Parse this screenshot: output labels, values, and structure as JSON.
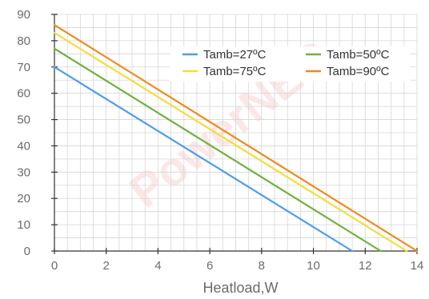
{
  "chart_data": {
    "type": "line",
    "title": "",
    "xlabel": "Heatload,W",
    "ylabel": "",
    "xlim": [
      0,
      14
    ],
    "ylim": [
      0,
      90
    ],
    "x_ticks": [
      0,
      2,
      4,
      6,
      8,
      10,
      12,
      14
    ],
    "y_ticks": [
      0,
      10,
      20,
      30,
      40,
      50,
      60,
      70,
      80,
      90
    ],
    "x_minor_step": 0.5,
    "y_minor_step": 5,
    "grid": true,
    "legend_position": "top-right",
    "series": [
      {
        "name": "Tamb=27ºC",
        "color": "#4f9ee8",
        "x": [
          0,
          11.5
        ],
        "y": [
          70,
          0
        ]
      },
      {
        "name": "Tamb=50ºC",
        "color": "#6db33f",
        "x": [
          0,
          12.6
        ],
        "y": [
          77,
          0
        ]
      },
      {
        "name": "Tamb=75ºC",
        "color": "#f5dc3a",
        "x": [
          0,
          13.6
        ],
        "y": [
          83,
          0
        ]
      },
      {
        "name": "Tamb=90ºC",
        "color": "#ee8a1e",
        "x": [
          0,
          14
        ],
        "y": [
          86,
          0
        ]
      }
    ],
    "legend_order": [
      0,
      1,
      2,
      3
    ]
  },
  "watermark": {
    "text": "PowerNEO"
  }
}
